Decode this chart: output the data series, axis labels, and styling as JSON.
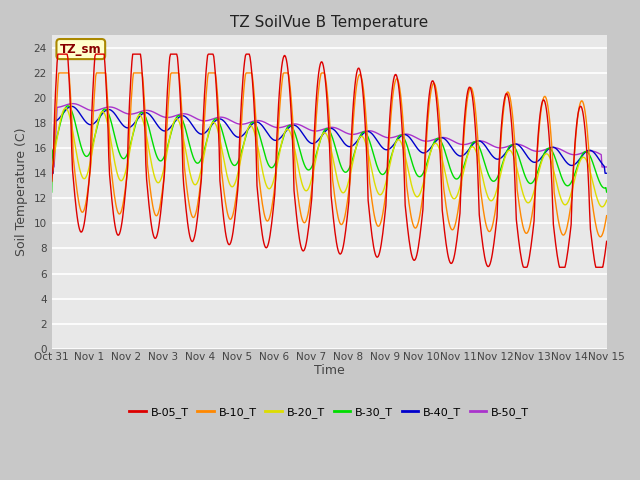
{
  "title": "TZ SoilVue B Temperature",
  "xlabel": "Time",
  "ylabel": "Soil Temperature (C)",
  "ylim": [
    0,
    25
  ],
  "yticks": [
    0,
    2,
    4,
    6,
    8,
    10,
    12,
    14,
    16,
    18,
    20,
    22,
    24
  ],
  "xtick_labels": [
    "Oct 31",
    "Nov 1",
    "Nov 2",
    "Nov 3",
    "Nov 4",
    "Nov 5",
    "Nov 6",
    "Nov 7",
    "Nov 8",
    "Nov 9",
    "Nov 10",
    "Nov 11",
    "Nov 12",
    "Nov 13",
    "Nov 14",
    "Nov 15"
  ],
  "series_colors": {
    "B-05_T": "#dd0000",
    "B-10_T": "#ff8800",
    "B-20_T": "#dddd00",
    "B-30_T": "#00dd00",
    "B-40_T": "#0000cc",
    "B-50_T": "#aa33cc"
  },
  "fig_bg": "#c8c8c8",
  "plot_bg": "#e8e8e8",
  "annotation_text": "TZ_sm",
  "annotation_fg": "#880000",
  "annotation_bg": "#ffffcc",
  "annotation_border": "#aa8800"
}
